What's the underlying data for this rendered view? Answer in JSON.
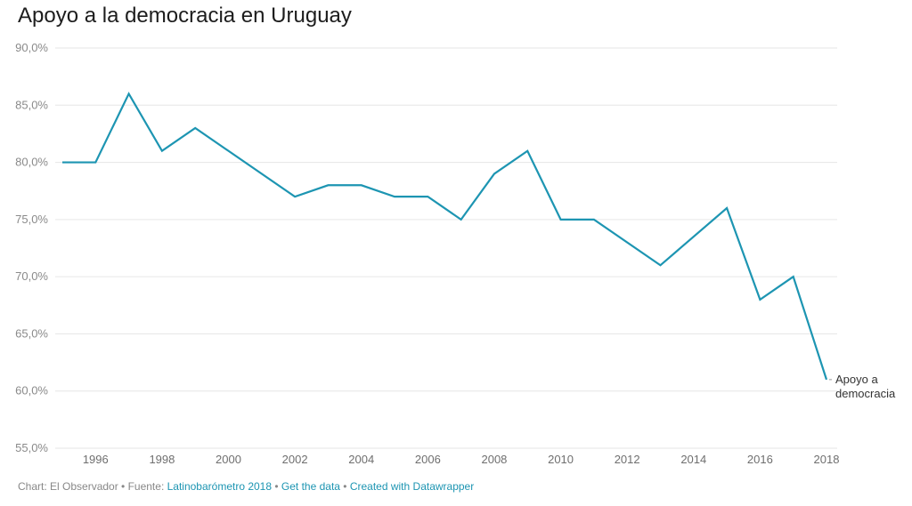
{
  "chart_data": {
    "type": "line",
    "title": "Apoyo a la democracia en Uruguay",
    "xlabel": "",
    "ylabel": "",
    "ylim": [
      55,
      90
    ],
    "xlim": [
      1995,
      2018
    ],
    "yticks": [
      90,
      85,
      80,
      75,
      70,
      65,
      60,
      55
    ],
    "ytick_labels": [
      "90,0%",
      "85,0%",
      "80,0%",
      "75,0%",
      "70,0%",
      "65,0%",
      "60,0%",
      "55,0%"
    ],
    "xticks": [
      1996,
      1998,
      2000,
      2002,
      2004,
      2006,
      2008,
      2010,
      2012,
      2014,
      2016,
      2018
    ],
    "xtick_labels": [
      "1996",
      "1998",
      "2000",
      "2002",
      "2004",
      "2006",
      "2008",
      "2010",
      "2012",
      "2014",
      "2016",
      "2018"
    ],
    "grid": true,
    "series": [
      {
        "name": "Apoyo a democracia",
        "color": "#1d95b2",
        "x": [
          1995,
          1996,
          1997,
          1998,
          1999,
          2002,
          2003,
          2004,
          2005,
          2006,
          2007,
          2008,
          2009,
          2010,
          2011,
          2013,
          2015,
          2016,
          2017,
          2018
        ],
        "values": [
          80,
          80,
          86,
          81,
          83,
          77,
          78,
          78,
          77,
          77,
          75,
          79,
          81,
          75,
          75,
          71,
          76,
          68,
          70,
          61
        ]
      }
    ],
    "series_label_lines": [
      "Apoyo a",
      "democracia"
    ]
  },
  "footer": {
    "prefix": "Chart: El Observador • Fuente: ",
    "source_link": "Latinobarómetro 2018",
    "sep1": " • ",
    "get_data": "Get the data",
    "sep2": " • ",
    "created_with": "Created with Datawrapper"
  }
}
